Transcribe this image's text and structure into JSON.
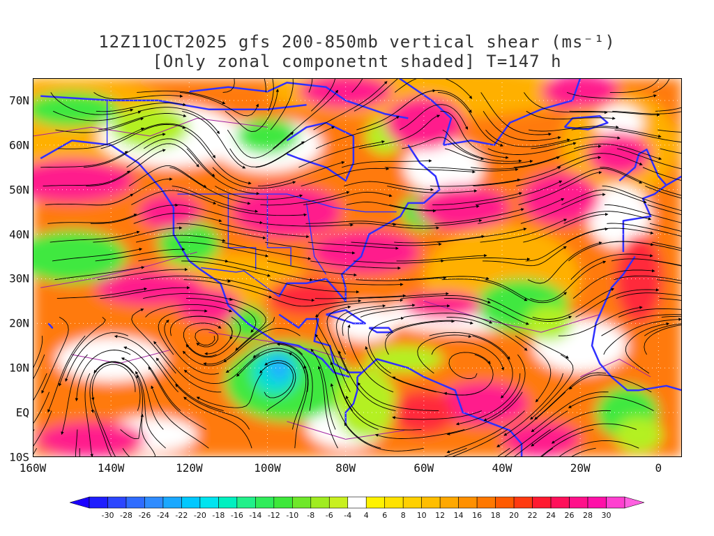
{
  "title": {
    "line1": "12Z11OCT2025 gfs 200-850mb vertical shear (ms⁻¹)",
    "line2": "[Only zonal componetnt shaded] T=147 h"
  },
  "axes": {
    "lat_labels": [
      "70N",
      "60N",
      "50N",
      "40N",
      "30N",
      "20N",
      "10N",
      "EQ",
      "10S"
    ],
    "lon_labels": [
      "160W",
      "140W",
      "120W",
      "100W",
      "80W",
      "60W",
      "40W",
      "20W",
      "0"
    ],
    "lon_range": [
      -160,
      6
    ],
    "lat_range": [
      -10,
      75
    ]
  },
  "colorbar": {
    "labels": [
      "-30",
      "-28",
      "-26",
      "-24",
      "-22",
      "-20",
      "-18",
      "-16",
      "-14",
      "-12",
      "-10",
      "-8",
      "-6",
      "-4",
      "4",
      "6",
      "8",
      "10",
      "12",
      "14",
      "16",
      "18",
      "20",
      "22",
      "24",
      "26",
      "28",
      "30"
    ],
    "colors": [
      "#1e1eff",
      "#2c46ff",
      "#2f6cff",
      "#2f8cff",
      "#1aa8ff",
      "#00c8ff",
      "#00e4f0",
      "#00f0c0",
      "#22f08a",
      "#30ec5a",
      "#3ee83a",
      "#6fe82a",
      "#a0ec20",
      "#c8f020",
      "#ffffff",
      "#fff200",
      "#ffe200",
      "#ffd000",
      "#ffbe00",
      "#ffa800",
      "#ff9000",
      "#ff7800",
      "#ff5a00",
      "#ff3a10",
      "#ff1a30",
      "#ff105a",
      "#ff108a",
      "#ff10a8",
      "#ff40d0"
    ],
    "under_color": "#1a00ff",
    "over_color": "#ff60e0"
  },
  "shading_colors": {
    "strong_positive": "#ff1a8c",
    "positive_high": "#ff2a3a",
    "positive_mid": "#ff7a10",
    "positive_low": "#ffb000",
    "positive_weak": "#ffe000",
    "near_zero": "#ffffff",
    "negative_weak": "#b4f020",
    "negative_mid": "#40e840",
    "negative_strong": "#00e0d0",
    "negative_very_strong": "#20b0ff",
    "coastline": "#3030ff",
    "contour": "#a020a0",
    "streamline": "#000000"
  }
}
